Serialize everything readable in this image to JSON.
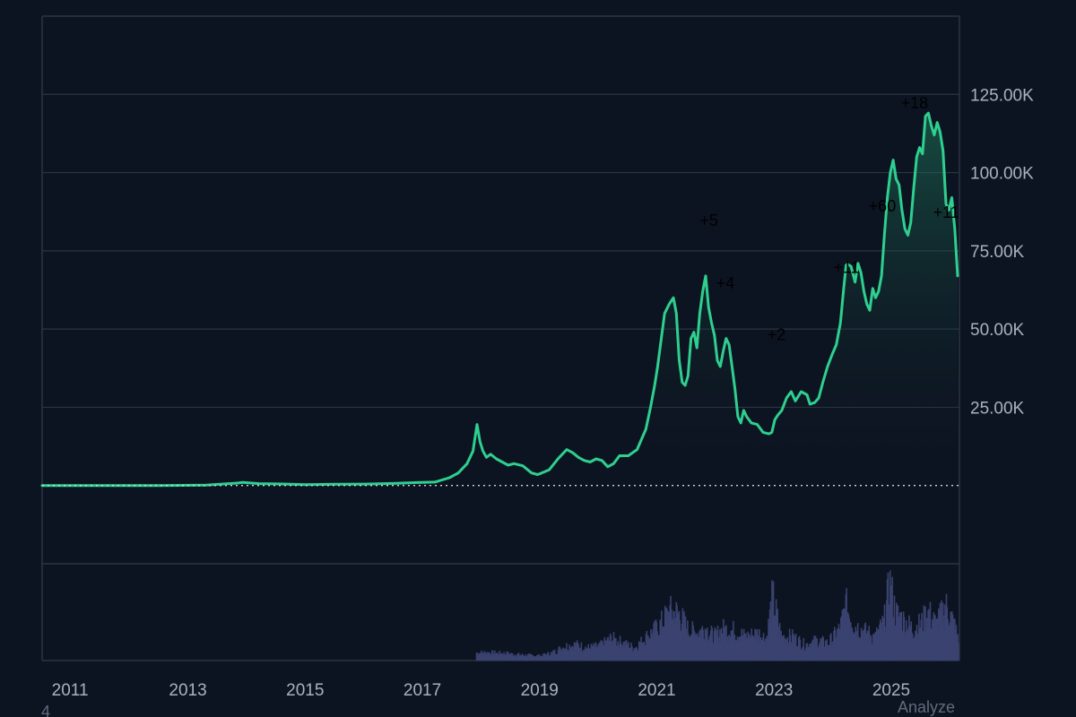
{
  "colors": {
    "background": "#0d1421",
    "grid": "#2a3444",
    "price_line": "#2ecf8f",
    "volume": "#3a4270",
    "baseline": "#cfd6e0"
  },
  "footer": {
    "left_label": "4",
    "right_label": "Analyze"
  },
  "chart_data": {
    "type": "area",
    "title": "",
    "xlabel": "",
    "ylabel": "",
    "xlim": [
      2010.5,
      2026.15
    ],
    "ylim": [
      -25000,
      150000
    ],
    "y_ticks": [
      {
        "value": 25000,
        "label": "25.00K"
      },
      {
        "value": 50000,
        "label": "50.00K"
      },
      {
        "value": 75000,
        "label": "75.00K"
      },
      {
        "value": 100000,
        "label": "100.00K"
      },
      {
        "value": 125000,
        "label": "125.00K"
      }
    ],
    "x_ticks": [
      {
        "value": 2011,
        "label": "2011"
      },
      {
        "value": 2013,
        "label": "2013"
      },
      {
        "value": 2015,
        "label": "2015"
      },
      {
        "value": 2017,
        "label": "2017"
      },
      {
        "value": 2019,
        "label": "2019"
      },
      {
        "value": 2021,
        "label": "2021"
      },
      {
        "value": 2023,
        "label": "2023"
      },
      {
        "value": 2025,
        "label": "2025"
      }
    ],
    "grid": true,
    "baseline": 0,
    "series": [
      {
        "values_x": [
          2010.5,
          2011.5,
          2012.5,
          2013.3,
          2013.85,
          2013.92,
          2014.2,
          2014.6,
          2015.0,
          2015.5,
          2016.0,
          2016.5,
          2016.9,
          2017.2,
          2017.45,
          2017.6,
          2017.75,
          2017.85,
          2017.92,
          2017.97,
          2018.02,
          2018.08,
          2018.15,
          2018.25,
          2018.35,
          2018.45,
          2018.55,
          2018.7,
          2018.85,
          2018.95,
          2019.0,
          2019.15,
          2019.3,
          2019.45,
          2019.55,
          2019.65,
          2019.75,
          2019.85,
          2019.95,
          2020.05,
          2020.15,
          2020.25,
          2020.35,
          2020.5,
          2020.65,
          2020.8,
          2020.88,
          2020.95,
          2021.0,
          2021.05,
          2021.12,
          2021.2,
          2021.27,
          2021.32,
          2021.37,
          2021.42,
          2021.47,
          2021.52,
          2021.57,
          2021.62,
          2021.67,
          2021.72,
          2021.77,
          2021.82,
          2021.87,
          2021.92,
          2021.97,
          2022.02,
          2022.07,
          2022.12,
          2022.17,
          2022.22,
          2022.27,
          2022.32,
          2022.37,
          2022.42,
          2022.47,
          2022.52,
          2022.6,
          2022.7,
          2022.8,
          2022.9,
          2022.95,
          2023.0,
          2023.05,
          2023.12,
          2023.2,
          2023.28,
          2023.35,
          2023.45,
          2023.55,
          2023.6,
          2023.68,
          2023.75,
          2023.82,
          2023.9,
          2023.98,
          2024.05,
          2024.12,
          2024.17,
          2024.22,
          2024.3,
          2024.37,
          2024.42,
          2024.47,
          2024.52,
          2024.57,
          2024.62,
          2024.67,
          2024.72,
          2024.77,
          2024.82,
          2024.87,
          2024.92,
          2024.97,
          2025.02,
          2025.07,
          2025.12,
          2025.17,
          2025.22,
          2025.27,
          2025.32,
          2025.37,
          2025.42,
          2025.47,
          2025.52,
          2025.57,
          2025.62,
          2025.67,
          2025.72,
          2025.77,
          2025.82,
          2025.87,
          2025.92,
          2025.97,
          2026.02,
          2026.07,
          2026.12
        ],
        "values": [
          0,
          5,
          12,
          120,
          800,
          1000,
          600,
          500,
          300,
          400,
          450,
          650,
          950,
          1100,
          2500,
          4000,
          7000,
          11000,
          19500,
          14000,
          11000,
          9000,
          10000,
          8500,
          7500,
          6500,
          7000,
          6300,
          4000,
          3500,
          3800,
          5000,
          8500,
          11500,
          10500,
          9000,
          8000,
          7500,
          8500,
          8000,
          6000,
          7000,
          9500,
          9500,
          11500,
          18000,
          25000,
          32000,
          38000,
          45000,
          55000,
          58000,
          60000,
          55000,
          40000,
          33000,
          32000,
          35000,
          47000,
          49000,
          44000,
          55000,
          62000,
          67000,
          57000,
          52000,
          48000,
          40000,
          38000,
          43000,
          47000,
          45000,
          38000,
          31000,
          22000,
          20000,
          24000,
          22000,
          20000,
          19500,
          17000,
          16500,
          17000,
          21000,
          22500,
          24000,
          28000,
          30000,
          27000,
          30000,
          29000,
          26000,
          26500,
          28000,
          33000,
          38000,
          42000,
          45000,
          52000,
          62000,
          71000,
          70000,
          65000,
          71000,
          68000,
          62000,
          58000,
          56000,
          63000,
          60000,
          62000,
          67000,
          80000,
          92000,
          100000,
          104000,
          98000,
          96000,
          88000,
          82000,
          80000,
          84000,
          95000,
          105000,
          108000,
          106000,
          118000,
          119000,
          115000,
          112000,
          116000,
          113000,
          107000,
          90000,
          88000,
          92000,
          82000,
          67000
        ]
      }
    ],
    "volume": {
      "values_x": [
        2017.9,
        2018.1,
        2018.4,
        2018.7,
        2019.0,
        2019.2,
        2019.4,
        2019.6,
        2019.8,
        2020.0,
        2020.2,
        2020.4,
        2020.6,
        2020.8,
        2021.0,
        2021.2,
        2021.35,
        2021.5,
        2021.65,
        2021.8,
        2021.95,
        2022.1,
        2022.3,
        2022.5,
        2022.7,
        2022.85,
        2022.95,
        2023.1,
        2023.3,
        2023.5,
        2023.7,
        2023.9,
        2024.1,
        2024.2,
        2024.35,
        2024.5,
        2024.7,
        2024.85,
        2024.95,
        2025.05,
        2025.2,
        2025.35,
        2025.5,
        2025.6,
        2025.75,
        2025.9,
        2026.0,
        2026.12
      ],
      "values": [
        0.1,
        0.1,
        0.09,
        0.07,
        0.06,
        0.1,
        0.18,
        0.2,
        0.16,
        0.18,
        0.28,
        0.22,
        0.16,
        0.3,
        0.42,
        0.62,
        0.6,
        0.4,
        0.35,
        0.42,
        0.3,
        0.4,
        0.38,
        0.3,
        0.35,
        0.28,
        0.82,
        0.3,
        0.3,
        0.2,
        0.25,
        0.22,
        0.4,
        0.7,
        0.45,
        0.38,
        0.3,
        0.48,
        0.98,
        0.6,
        0.5,
        0.4,
        0.48,
        0.62,
        0.45,
        0.7,
        0.55,
        0.3
      ]
    },
    "annotations": [
      {
        "label": "+5",
        "x": 2021.72,
        "y": 83000
      },
      {
        "label": "+4",
        "x": 2022.0,
        "y": 63000
      },
      {
        "label": "+2",
        "x": 2022.87,
        "y": 46500
      },
      {
        "label": "+11",
        "x": 2024.0,
        "y": 68000
      },
      {
        "label": "+60",
        "x": 2024.6,
        "y": 87500
      },
      {
        "label": "+18",
        "x": 2025.15,
        "y": 120500
      },
      {
        "label": "+11",
        "x": 2025.7,
        "y": 85500
      }
    ]
  }
}
